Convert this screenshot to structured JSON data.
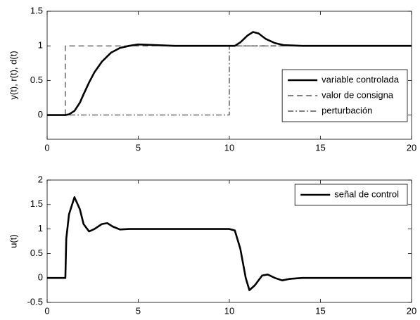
{
  "chart_data": [
    {
      "type": "line",
      "ylabel": "y(t), r(t), d(t)",
      "xlim": [
        0,
        20
      ],
      "xticks": [
        0,
        5,
        10,
        15,
        20
      ],
      "ylim": [
        -0.35,
        1.5
      ],
      "yticks": [
        0,
        0.5,
        1,
        1.5
      ],
      "grid": false,
      "legend": "lower right",
      "series": [
        {
          "name": "variable controlada",
          "color": "#000000",
          "style": "solid",
          "x": [
            0,
            1,
            1.2,
            1.5,
            1.8,
            2,
            2.3,
            2.6,
            3,
            3.5,
            4,
            4.5,
            5,
            6,
            7,
            8,
            9,
            10,
            10.3,
            10.6,
            11,
            11.3,
            11.6,
            12,
            12.5,
            13,
            14,
            15,
            20
          ],
          "values": [
            0,
            0,
            0.01,
            0.06,
            0.18,
            0.3,
            0.47,
            0.62,
            0.77,
            0.9,
            0.97,
            1.0,
            1.02,
            1.01,
            1.0,
            1.0,
            1.0,
            1.0,
            1.0,
            1.05,
            1.15,
            1.2,
            1.18,
            1.1,
            1.04,
            1.01,
            1.0,
            1.0,
            1.0
          ]
        },
        {
          "name": "valor de consigna",
          "color": "#000000",
          "style": "dashed",
          "x": [
            0,
            1,
            1,
            20
          ],
          "values": [
            0,
            0,
            1,
            1
          ]
        },
        {
          "name": "perturbación",
          "color": "#000000",
          "style": "dashdot",
          "x": [
            0,
            10,
            10,
            20
          ],
          "values": [
            0,
            0,
            1,
            1
          ]
        }
      ]
    },
    {
      "type": "line",
      "ylabel": "u(t)",
      "xlim": [
        0,
        20
      ],
      "xticks": [
        0,
        5,
        10,
        15,
        20
      ],
      "ylim": [
        -0.5,
        2
      ],
      "yticks": [
        -0.5,
        0,
        0.5,
        1,
        1.5,
        2
      ],
      "grid": false,
      "legend": "upper right",
      "series": [
        {
          "name": "señal de control",
          "color": "#000000",
          "style": "solid",
          "x": [
            0,
            1,
            1.05,
            1.2,
            1.5,
            1.8,
            2,
            2.3,
            2.6,
            3,
            3.3,
            3.6,
            4,
            4.5,
            5,
            10,
            10.3,
            10.6,
            10.9,
            11.1,
            11.4,
            11.8,
            12.1,
            12.5,
            12.9,
            13.3,
            14,
            20
          ],
          "values": [
            0,
            0,
            0.8,
            1.3,
            1.65,
            1.4,
            1.1,
            0.95,
            1.0,
            1.1,
            1.12,
            1.05,
            0.99,
            1.0,
            1.0,
            1.0,
            0.97,
            0.6,
            0.0,
            -0.25,
            -0.15,
            0.05,
            0.07,
            0.0,
            -0.05,
            -0.02,
            0,
            0
          ]
        }
      ]
    }
  ]
}
